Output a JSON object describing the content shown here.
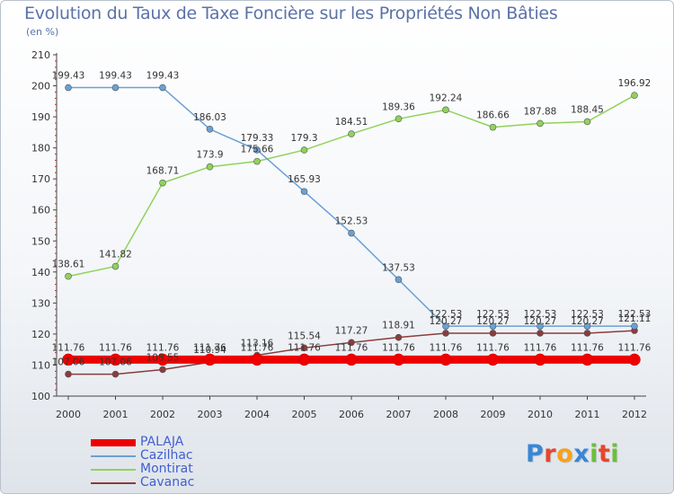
{
  "chart_data": {
    "type": "line",
    "title": "Evolution du Taux de Taxe Foncière sur les Propriétés Non Bâties",
    "subtitle": "(en %)",
    "x": [
      "2000",
      "2001",
      "2002",
      "2003",
      "2004",
      "2005",
      "2006",
      "2007",
      "2008",
      "2009",
      "2010",
      "2011",
      "2012"
    ],
    "ylim": [
      100,
      210
    ],
    "yticks": [
      100,
      110,
      120,
      130,
      140,
      150,
      160,
      170,
      180,
      190,
      200,
      210
    ],
    "grid": false,
    "legend_position": "bottom-left",
    "series": [
      {
        "name": "PALAJA",
        "color": "#ee0000",
        "values": [
          111.76,
          111.76,
          111.76,
          111.76,
          111.76,
          111.76,
          111.76,
          111.76,
          111.76,
          111.76,
          111.76,
          111.76,
          111.76
        ],
        "labels": [
          "111.76",
          "111.76",
          "111.76",
          "111.76",
          "111.76",
          "111.76",
          "111.76",
          "111.76",
          "111.76",
          "111.76",
          "111.76",
          "111.76",
          "111.76"
        ]
      },
      {
        "name": "Cazilhac",
        "color": "#6aa0d4",
        "values": [
          199.43,
          199.43,
          199.43,
          186.03,
          179.33,
          165.93,
          152.53,
          137.53,
          122.53,
          122.53,
          122.53,
          122.53,
          122.53
        ],
        "labels": [
          "199.43",
          "199.43",
          "199.43",
          "186.03",
          "179.33",
          "165.93",
          "152.53",
          "137.53",
          "122.53",
          "122.53",
          "122.53",
          "122.53",
          "122.53"
        ]
      },
      {
        "name": "Montirat",
        "color": "#90d25a",
        "values": [
          138.61,
          141.82,
          168.71,
          173.9,
          175.66,
          179.3,
          184.51,
          189.36,
          192.24,
          186.66,
          187.88,
          188.45,
          196.92
        ],
        "labels": [
          "138.61",
          "141.82",
          "168.71",
          "173.9",
          "175.66",
          "179.3",
          "184.51",
          "189.36",
          "192.24",
          "186.66",
          "187.88",
          "188.45",
          "196.92"
        ]
      },
      {
        "name": "Cavanac",
        "color": "#8a3c3c",
        "values": [
          107.06,
          107.06,
          108.55,
          110.94,
          113.16,
          115.54,
          117.27,
          118.91,
          120.27,
          120.27,
          120.27,
          120.27,
          121.11
        ],
        "labels": [
          "107.06",
          "107.06",
          "108.55",
          "110.94",
          "113.16",
          "115.54",
          "117.27",
          "118.91",
          "120.27",
          "120.27",
          "120.27",
          "120.27",
          "121.11"
        ]
      }
    ]
  },
  "brand": {
    "letters": [
      "P",
      "r",
      "o",
      "x",
      "i",
      "t",
      "i"
    ],
    "colors": [
      "#3a86d6",
      "#e8452c",
      "#f7a21b",
      "#3a86d6",
      "#6cbf3c",
      "#e8452c",
      "#6cbf3c"
    ]
  }
}
